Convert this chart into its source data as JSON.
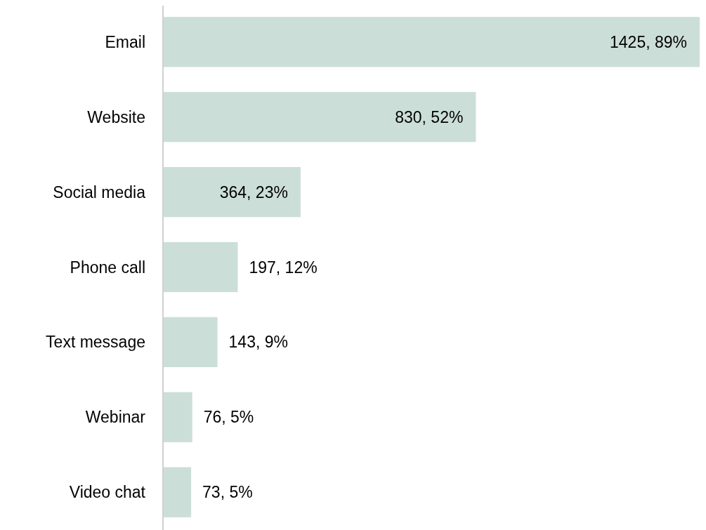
{
  "chart_data": {
    "type": "bar",
    "orientation": "horizontal",
    "categories": [
      "Email",
      "Website",
      "Social media",
      "Phone call",
      "Text message",
      "Webinar",
      "Video chat"
    ],
    "values": [
      1425,
      830,
      364,
      197,
      143,
      76,
      73
    ],
    "value_labels": [
      "1425, 89%",
      "830, 52%",
      "364, 23%",
      "197, 12%",
      "143, 9%",
      "76, 5%",
      "73, 5%"
    ],
    "color": "#ccded8"
  }
}
